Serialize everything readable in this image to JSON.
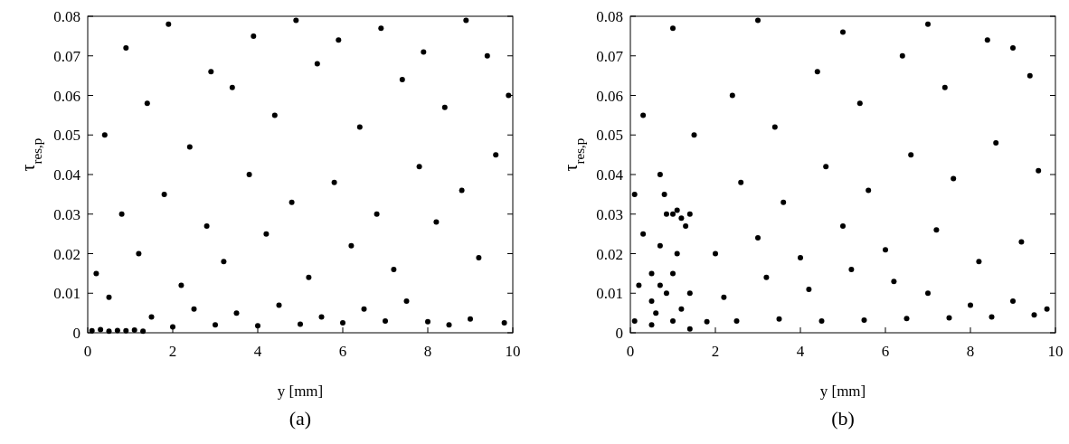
{
  "chart_data": [
    {
      "type": "scatter",
      "title": "(a)",
      "xlabel": "y [mm]",
      "ylabel": "τ$_{res,p}$",
      "xlim": [
        0,
        10
      ],
      "xticks": [
        0,
        2,
        4,
        6,
        8,
        10
      ],
      "ylim": [
        0,
        0.08
      ],
      "yticks": [
        0,
        0.01,
        0.02,
        0.03,
        0.04,
        0.05,
        0.06,
        0.07,
        0.08
      ],
      "marker": "circle",
      "grid": false,
      "series": [
        {
          "color": "#000000",
          "x": [
            0.1,
            0.3,
            0.5,
            0.7,
            0.9,
            1.1,
            1.3,
            2,
            3,
            4,
            5,
            6,
            7,
            8,
            9,
            9.8,
            8.5,
            1.5,
            2.5,
            3.5,
            4.5,
            5.5,
            6.5,
            7.5,
            0.5,
            0.2,
            1.2,
            2.2,
            3.2,
            4.2,
            5.2,
            6.2,
            7.2,
            8.2,
            9.2,
            0.8,
            1.8,
            2.8,
            3.8,
            4.8,
            5.8,
            6.8,
            7.8,
            8.8,
            9.6,
            0.4,
            1.4,
            2.4,
            3.4,
            4.4,
            5.4,
            6.4,
            7.4,
            8.4,
            9.4,
            0.9,
            1.9,
            2.9,
            3.9,
            4.9,
            5.9,
            6.9,
            7.9,
            8.9,
            9.9
          ],
          "values": [
            0.0005,
            0.0008,
            0.0004,
            0.0006,
            0.0005,
            0.0007,
            0.0004,
            0.0015,
            0.002,
            0.0018,
            0.0022,
            0.0025,
            0.003,
            0.0028,
            0.0035,
            0.0025,
            0.002,
            0.004,
            0.006,
            0.005,
            0.007,
            0.004,
            0.006,
            0.008,
            0.009,
            0.015,
            0.02,
            0.012,
            0.018,
            0.025,
            0.014,
            0.022,
            0.016,
            0.028,
            0.019,
            0.03,
            0.035,
            0.027,
            0.04,
            0.033,
            0.038,
            0.03,
            0.042,
            0.036,
            0.045,
            0.05,
            0.058,
            0.047,
            0.062,
            0.055,
            0.068,
            0.052,
            0.064,
            0.057,
            0.07,
            0.072,
            0.078,
            0.066,
            0.075,
            0.079,
            0.074,
            0.077,
            0.071,
            0.079,
            0.06
          ]
        }
      ]
    },
    {
      "type": "scatter",
      "title": "(b)",
      "xlabel": "y [mm]",
      "ylabel": "τ$_{res,p}$",
      "xlim": [
        0,
        10
      ],
      "xticks": [
        0,
        2,
        4,
        6,
        8,
        10
      ],
      "ylim": [
        0,
        0.08
      ],
      "yticks": [
        0,
        0.01,
        0.02,
        0.03,
        0.04,
        0.05,
        0.06,
        0.07,
        0.08
      ],
      "marker": "circle",
      "grid": false,
      "series": [
        {
          "color": "#000000",
          "x": [
            0.5,
            0.5,
            0.5,
            0.6,
            0.7,
            0.7,
            0.8,
            0.7,
            0.85,
            0.85,
            1.0,
            1.0,
            1.0,
            1.1,
            1.1,
            1.2,
            1.2,
            1.3,
            1.4,
            1.4,
            1.4,
            0.1,
            1.8,
            2.5,
            3.5,
            4.5,
            5.5,
            6.5,
            7.5,
            8.5,
            9.5,
            8,
            9,
            9.8,
            7,
            0.2,
            2.2,
            3.2,
            4.2,
            5.2,
            6.2,
            0.3,
            2.0,
            3,
            4,
            5,
            6,
            7.2,
            8.2,
            9.2,
            0.1,
            2.6,
            3.6,
            4.6,
            5.6,
            6.6,
            7.6,
            8.6,
            9.6,
            0.3,
            1.5,
            2.4,
            3.4,
            4.4,
            5.4,
            6.4,
            7.4,
            8.4,
            9.4,
            1.0,
            3.0,
            5.0,
            7.0,
            9.0
          ],
          "values": [
            0.002,
            0.008,
            0.015,
            0.005,
            0.012,
            0.022,
            0.035,
            0.04,
            0.03,
            0.01,
            0.03,
            0.015,
            0.003,
            0.031,
            0.02,
            0.029,
            0.006,
            0.027,
            0.03,
            0.01,
            0.001,
            0.003,
            0.0028,
            0.003,
            0.0035,
            0.003,
            0.0032,
            0.0036,
            0.0038,
            0.004,
            0.0045,
            0.007,
            0.008,
            0.006,
            0.01,
            0.012,
            0.009,
            0.014,
            0.011,
            0.016,
            0.013,
            0.025,
            0.02,
            0.024,
            0.019,
            0.027,
            0.021,
            0.026,
            0.018,
            0.023,
            0.035,
            0.038,
            0.033,
            0.042,
            0.036,
            0.045,
            0.039,
            0.048,
            0.041,
            0.055,
            0.05,
            0.06,
            0.052,
            0.066,
            0.058,
            0.07,
            0.062,
            0.074,
            0.065,
            0.077,
            0.079,
            0.076,
            0.078,
            0.072
          ]
        }
      ]
    }
  ]
}
